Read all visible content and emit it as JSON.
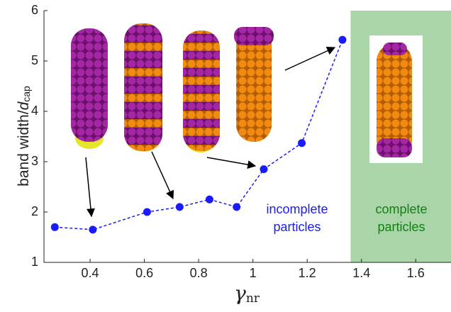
{
  "chart_data": {
    "type": "line",
    "x": [
      0.27,
      0.41,
      0.61,
      0.73,
      0.84,
      0.94,
      1.04,
      1.18,
      1.33
    ],
    "values": [
      1.7,
      1.65,
      2.0,
      2.1,
      2.25,
      2.1,
      2.85,
      3.37,
      5.42
    ],
    "color": "#1a1aff",
    "xlim": [
      0.23,
      1.73
    ],
    "xticks": [
      0.4,
      0.6,
      0.8,
      1,
      1.2,
      1.4,
      1.6
    ],
    "ylim": [
      1,
      6
    ],
    "yticks": [
      1,
      2,
      3,
      4,
      5,
      6
    ],
    "xlabel_parts": [
      "γ",
      "nr"
    ],
    "ylabel_parts": [
      "band width/",
      "d",
      "cap"
    ],
    "shade": {
      "from": 1.36,
      "color": "#a9d5a9"
    },
    "annotations": [
      {
        "lines": [
          "incomplete",
          "particles"
        ],
        "color": "#1a1aff"
      },
      {
        "lines": [
          "complete",
          "particles"
        ],
        "color": "#128012"
      }
    ]
  }
}
